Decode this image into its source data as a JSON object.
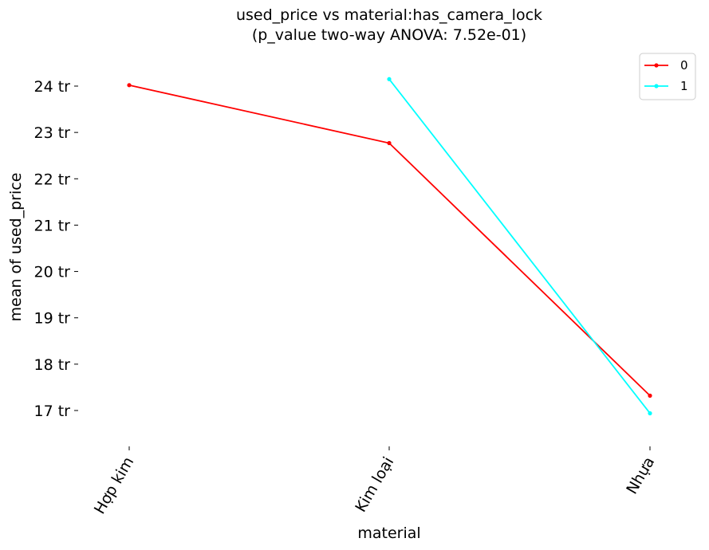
{
  "chart_data": {
    "type": "line",
    "title": "used_price vs material:has_camera_lock",
    "subtitle": "(p_value two-way ANOVA: 7.52e-01)",
    "xlabel": "material",
    "ylabel": "mean of used_price",
    "categories": [
      "Hợp kim",
      "Kim loại",
      "Nhựa"
    ],
    "yticks": [
      17,
      18,
      19,
      20,
      21,
      22,
      23,
      24
    ],
    "ytick_labels": [
      "17 tr",
      "18 tr",
      "19 tr",
      "20 tr",
      "21 tr",
      "22 tr",
      "23 tr",
      "24 tr"
    ],
    "ylim": [
      16.2,
      24.9
    ],
    "grid": false,
    "legend_position": "top-right",
    "series": [
      {
        "name": "0",
        "color": "#ff0000",
        "x": [
          "Hợp kim",
          "Kim loại",
          "Nhựa"
        ],
        "values": [
          24.02,
          22.77,
          17.32
        ]
      },
      {
        "name": "1",
        "color": "#00ffff",
        "x": [
          "Kim loại",
          "Nhựa"
        ],
        "values": [
          24.15,
          16.94
        ]
      }
    ]
  }
}
